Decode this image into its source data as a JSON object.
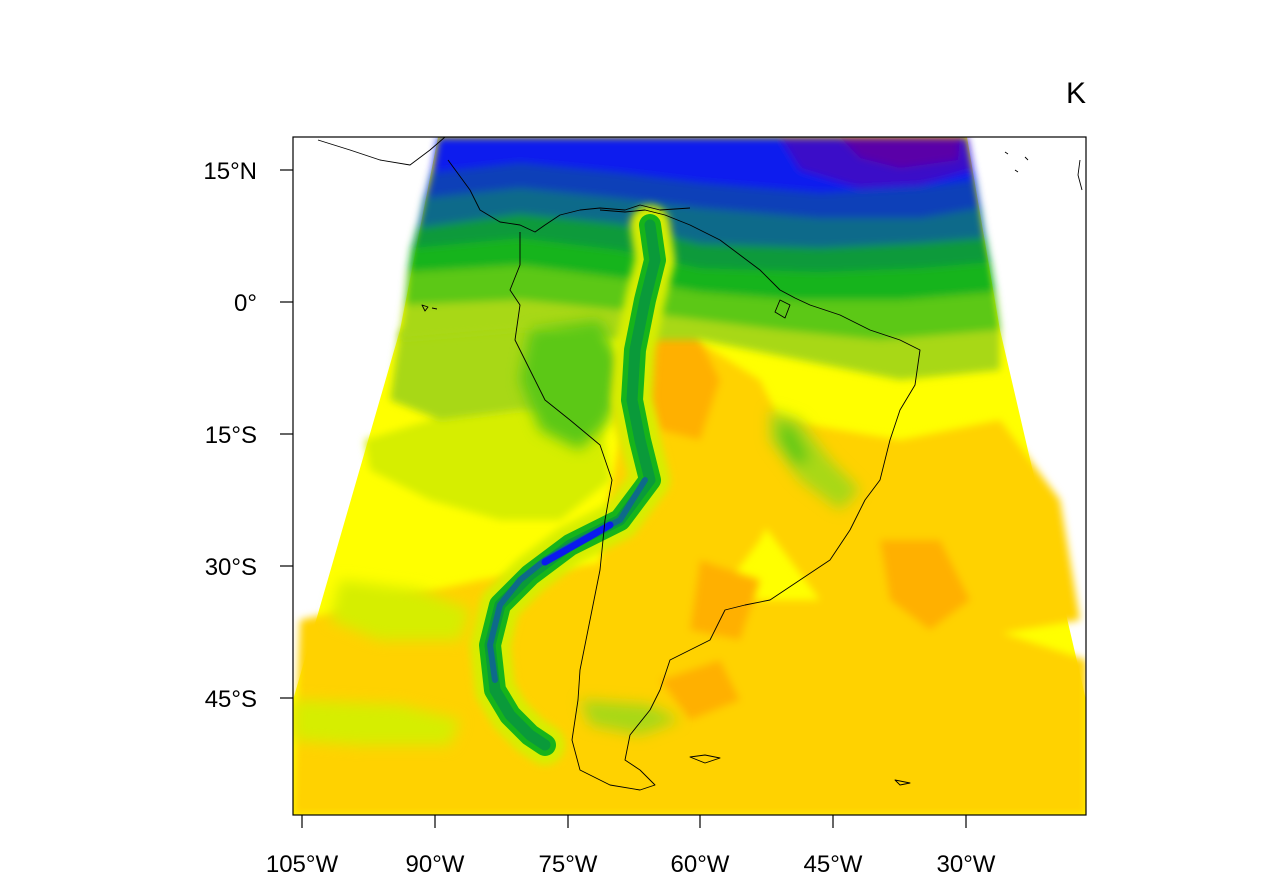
{
  "map": {
    "unit": "K",
    "lat_ticks": [
      "15°N",
      "0°",
      "15°S",
      "30°S",
      "45°S"
    ],
    "lon_ticks": [
      "105°W",
      "90°W",
      "75°W",
      "60°W",
      "45°W",
      "30°W"
    ],
    "palette": {
      "violet": "#5a00a8",
      "blue": "#0a1aee",
      "navy": "#0a3fb8",
      "teal": "#0e6a8a",
      "green_dark": "#0a9a3a",
      "green": "#16b41a",
      "green_light": "#5cc814",
      "lime": "#a8d814",
      "yellow_green": "#d6ee00",
      "yellow": "#ffff00",
      "gold": "#ffd200",
      "orange": "#ffb000",
      "dark_orange": "#f59a00"
    }
  }
}
